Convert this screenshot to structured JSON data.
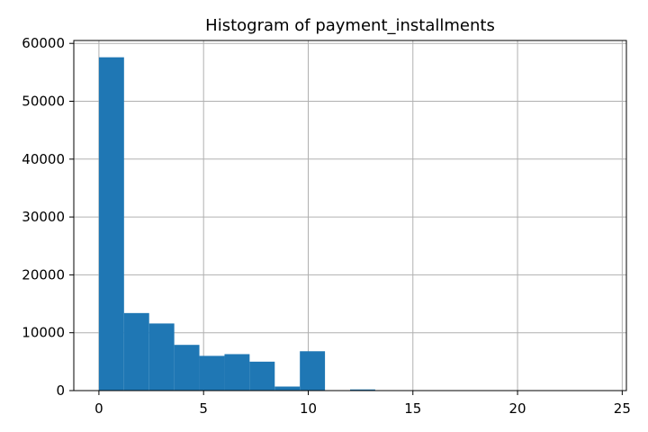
{
  "chart_data": {
    "type": "bar",
    "title": "Histogram of payment_installments",
    "xlabel": "",
    "ylabel": "",
    "xlim": [
      -1.2,
      25.2
    ],
    "ylim": [
      0,
      60500
    ],
    "xticks": [
      0,
      5,
      10,
      15,
      20,
      25
    ],
    "yticks": [
      0,
      10000,
      20000,
      30000,
      40000,
      50000,
      60000
    ],
    "grid": true,
    "bin_width": 1.2,
    "bins": [
      {
        "start": 0.0,
        "end": 1.2,
        "value": 57600
      },
      {
        "start": 1.2,
        "end": 2.4,
        "value": 13400
      },
      {
        "start": 2.4,
        "end": 3.6,
        "value": 11600
      },
      {
        "start": 3.6,
        "end": 4.8,
        "value": 7900
      },
      {
        "start": 4.8,
        "end": 6.0,
        "value": 6000
      },
      {
        "start": 6.0,
        "end": 7.2,
        "value": 6300
      },
      {
        "start": 7.2,
        "end": 8.4,
        "value": 5000
      },
      {
        "start": 8.4,
        "end": 9.6,
        "value": 700
      },
      {
        "start": 9.6,
        "end": 10.8,
        "value": 6800
      },
      {
        "start": 10.8,
        "end": 12.0,
        "value": 60
      },
      {
        "start": 12.0,
        "end": 13.2,
        "value": 200
      },
      {
        "start": 13.2,
        "end": 14.4,
        "value": 40
      },
      {
        "start": 14.4,
        "end": 15.6,
        "value": 70
      },
      {
        "start": 15.6,
        "end": 16.8,
        "value": 20
      },
      {
        "start": 16.8,
        "end": 18.0,
        "value": 10
      },
      {
        "start": 18.0,
        "end": 19.2,
        "value": 15
      },
      {
        "start": 19.2,
        "end": 20.4,
        "value": 10
      },
      {
        "start": 20.4,
        "end": 21.6,
        "value": 20
      },
      {
        "start": 21.6,
        "end": 22.8,
        "value": 5
      },
      {
        "start": 22.8,
        "end": 24.0,
        "value": 20
      }
    ],
    "colors": {
      "bar": "#1f77b4",
      "grid": "#b0b0b0",
      "axis": "#000000"
    }
  }
}
